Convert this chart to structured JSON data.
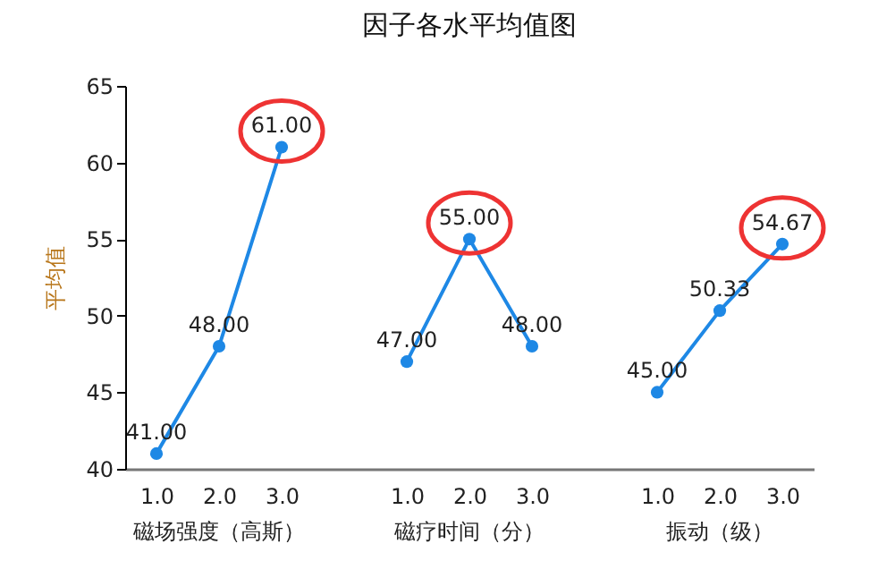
{
  "chart_data": {
    "type": "line",
    "title": "因子各水平均值图",
    "ylabel": "平均值",
    "categories": [
      "1.0",
      "2.0",
      "3.0",
      null,
      "1.0",
      "2.0",
      "3.0",
      null,
      "1.0",
      "2.0",
      "3.0"
    ],
    "series": [
      {
        "color": "#1e88e5",
        "values": [
          41,
          48,
          61,
          null,
          null,
          null,
          null,
          null,
          null,
          null,
          null
        ],
        "value_labels": [
          "41.00",
          "48.00",
          "61.00",
          null,
          null,
          null,
          null,
          null,
          null,
          null,
          null
        ]
      },
      {
        "color": "#1e88e5",
        "values": [
          null,
          null,
          null,
          null,
          47,
          55,
          48,
          null,
          null,
          null,
          null
        ],
        "value_labels": [
          null,
          null,
          null,
          null,
          "47.00",
          "55.00",
          "48.00",
          null,
          null,
          null,
          null
        ]
      },
      {
        "color": "#1e88e5",
        "values": [
          null,
          null,
          null,
          null,
          null,
          null,
          null,
          null,
          45,
          50.33,
          54.67
        ],
        "value_labels": [
          null,
          null,
          null,
          null,
          null,
          null,
          null,
          null,
          "45.00",
          "50.33",
          "54.67"
        ]
      }
    ],
    "annotations": [
      "磁场强度（高斯）",
      "磁疗时间（分）",
      "振动（级）"
    ],
    "ylim": [
      40,
      65
    ],
    "yticks": [
      40,
      45,
      50,
      55,
      60,
      65
    ],
    "grid": false,
    "legend": false,
    "marker": "circle"
  }
}
